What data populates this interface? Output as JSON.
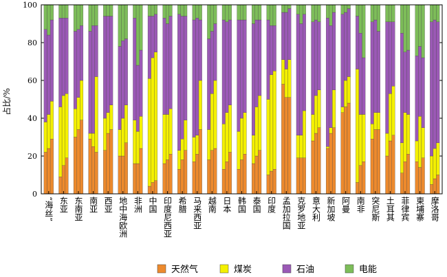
{
  "chart_data": {
    "type": "bar",
    "stacked": true,
    "ylabel": "占比/%",
    "ylim": [
      0,
      100
    ],
    "yticks": [
      0,
      20,
      40,
      60,
      80,
      100
    ],
    "grid": false,
    "legend": "bottom",
    "categories": [
      "“海丝”",
      "东亚",
      "东南亚",
      "南亚",
      "西亚",
      "地中海欧洲",
      "非洲",
      "中国",
      "印度尼西亚",
      "希腊",
      "马来西亚",
      "越南",
      "日本",
      "韩国",
      "泰国",
      "印度",
      "孟加拉国",
      "克罗地亚",
      "意大利",
      "新加坡",
      "阿曼",
      "南非",
      "突尼斯",
      "土耳其",
      "菲律宾",
      "柬埔寨",
      "摩洛哥"
    ],
    "sub_bars_per_category": 3,
    "series": [
      {
        "name": "天然气",
        "color": "#ed8a2d",
        "values": [
          [
            22,
            24,
            29
          ],
          [
            9,
            15,
            19
          ],
          [
            30,
            34,
            39
          ],
          [
            29,
            25,
            22
          ],
          [
            23,
            32,
            34
          ],
          [
            20,
            20,
            27
          ],
          [
            16,
            16,
            24
          ],
          [
            4,
            6,
            7
          ],
          [
            16,
            18,
            21
          ],
          [
            13,
            18,
            23
          ],
          [
            17,
            21,
            34
          ],
          [
            18,
            23,
            24
          ],
          [
            13,
            17,
            22
          ],
          [
            13,
            18,
            21
          ],
          [
            16,
            20,
            23
          ],
          [
            10,
            12,
            13
          ],
          [
            58,
            51,
            51
          ],
          [
            19,
            19,
            19
          ],
          [
            28,
            32,
            35
          ],
          [
            24,
            32,
            35
          ],
          [
            43,
            46,
            48
          ],
          [
            6,
            15,
            17
          ],
          [
            29,
            34,
            34
          ],
          [
            20,
            28,
            31
          ],
          [
            11,
            17,
            21
          ],
          [
            17,
            14,
            19
          ],
          [
            5,
            8,
            10
          ]
        ]
      },
      {
        "name": "煤炭",
        "color": "#f4f000",
        "values": [
          [
            16,
            18,
            20
          ],
          [
            37,
            37,
            34
          ],
          [
            15,
            17,
            21
          ],
          [
            3,
            7,
            40
          ],
          [
            17,
            11,
            13
          ],
          [
            14,
            20,
            20
          ],
          [
            23,
            17,
            17
          ],
          [
            57,
            66,
            68
          ],
          [
            26,
            24,
            24
          ],
          [
            10,
            11,
            16
          ],
          [
            13,
            10,
            26
          ],
          [
            16,
            30,
            36
          ],
          [
            24,
            26,
            25
          ],
          [
            20,
            22,
            22
          ],
          [
            15,
            26,
            29
          ],
          [
            40,
            51,
            52
          ],
          [
            13,
            15,
            20
          ],
          [
            12,
            12,
            25
          ],
          [
            14,
            20,
            20
          ],
          [
            1,
            3,
            20
          ],
          [
            3,
            14,
            14
          ],
          [
            60,
            27,
            25
          ],
          [
            8,
            9,
            9
          ],
          [
            12,
            25,
            26
          ],
          [
            16,
            26,
            21
          ],
          [
            11,
            27,
            16
          ],
          [
            15,
            16,
            17
          ]
        ]
      },
      {
        "name": "石油",
        "color": "#9b59b6",
        "values": [
          [
            49,
            42,
            43
          ],
          [
            47,
            41,
            40
          ],
          [
            41,
            36,
            29
          ],
          [
            54,
            57,
            27
          ],
          [
            54,
            51,
            47
          ],
          [
            44,
            41,
            35
          ],
          [
            54,
            35,
            35
          ],
          [
            33,
            22,
            20
          ],
          [
            51,
            48,
            49
          ],
          [
            72,
            65,
            55
          ],
          [
            62,
            62,
            32
          ],
          [
            48,
            33,
            30
          ],
          [
            55,
            48,
            45
          ],
          [
            59,
            52,
            49
          ],
          [
            59,
            46,
            40
          ],
          [
            42,
            26,
            24
          ],
          [
            25,
            30,
            27
          ],
          [
            64,
            59,
            51
          ],
          [
            49,
            40,
            36
          ],
          [
            68,
            54,
            41
          ],
          [
            49,
            36,
            36
          ],
          [
            28,
            43,
            30
          ],
          [
            54,
            49,
            43
          ],
          [
            59,
            38,
            34
          ],
          [
            58,
            32,
            34
          ],
          [
            45,
            37,
            37
          ],
          [
            71,
            68,
            64
          ]
        ]
      },
      {
        "name": "电能",
        "color": "#7dbd59",
        "values": [
          [
            13,
            16,
            8
          ],
          [
            7,
            7,
            7
          ],
          [
            14,
            13,
            11
          ],
          [
            14,
            11,
            11
          ],
          [
            6,
            6,
            6
          ],
          [
            22,
            19,
            18
          ],
          [
            7,
            32,
            24
          ],
          [
            6,
            6,
            5
          ],
          [
            7,
            10,
            6
          ],
          [
            5,
            6,
            6
          ],
          [
            8,
            7,
            8
          ],
          [
            18,
            14,
            10
          ],
          [
            8,
            9,
            8
          ],
          [
            8,
            8,
            8
          ],
          [
            10,
            8,
            8
          ],
          [
            8,
            11,
            11
          ],
          [
            4,
            4,
            2
          ],
          [
            5,
            10,
            5
          ],
          [
            9,
            8,
            9
          ],
          [
            7,
            11,
            4
          ],
          [
            5,
            4,
            2
          ],
          [
            6,
            15,
            28
          ],
          [
            9,
            8,
            14
          ],
          [
            9,
            9,
            9
          ],
          [
            15,
            25,
            24
          ],
          [
            27,
            22,
            28
          ],
          [
            9,
            8,
            9
          ]
        ]
      }
    ]
  }
}
